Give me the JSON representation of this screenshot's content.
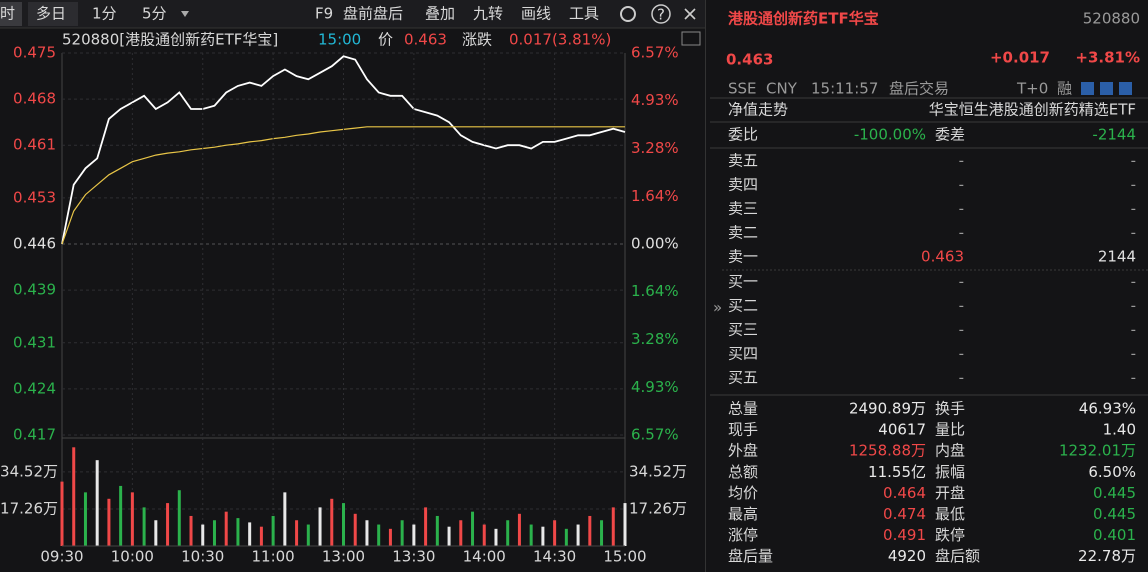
{
  "toolbar": {
    "tabs": [
      "时",
      "多日",
      "1分",
      "5分"
    ],
    "tools": [
      "F9",
      "盘前盘后",
      "叠加",
      "九转",
      "画线",
      "工具"
    ]
  },
  "quote_line": {
    "name": "520880[港股通创新药ETF华宝]",
    "time": "15:00",
    "price_label": "价",
    "price": "0.463",
    "change_label": "涨跌",
    "change": "0.017(3.81%)"
  },
  "chart_data": [
    {
      "type": "line",
      "x": [
        0,
        5,
        10,
        15,
        20,
        25,
        30,
        35,
        40,
        45,
        50,
        55,
        60,
        65,
        70,
        75,
        80,
        85,
        90,
        95,
        100,
        105,
        110,
        115,
        120,
        125,
        130,
        135,
        140,
        145,
        150,
        155,
        160,
        165,
        170,
        175,
        180,
        185,
        190,
        195,
        200,
        205,
        210,
        215,
        220,
        225,
        230,
        235,
        240
      ],
      "xlim": [
        0,
        240
      ],
      "series": [
        {
          "color": "#ffffff",
          "values": [
            0.446,
            0.455,
            0.4575,
            0.459,
            0.465,
            0.4665,
            0.4675,
            0.4685,
            0.4665,
            0.4675,
            0.469,
            0.4665,
            0.4665,
            0.467,
            0.469,
            0.47,
            0.4705,
            0.47,
            0.4715,
            0.4725,
            0.4715,
            0.471,
            0.472,
            0.473,
            0.4745,
            0.474,
            0.471,
            0.469,
            0.4685,
            0.4685,
            0.4665,
            0.466,
            0.4655,
            0.4645,
            0.4625,
            0.4615,
            0.461,
            0.4605,
            0.461,
            0.461,
            0.4605,
            0.4615,
            0.4615,
            0.462,
            0.4625,
            0.4625,
            0.463,
            0.4635,
            0.463
          ]
        },
        {
          "color": "#e8c547",
          "values": [
            0.446,
            0.451,
            0.4535,
            0.455,
            0.4565,
            0.4575,
            0.4585,
            0.459,
            0.4595,
            0.4598,
            0.46,
            0.4603,
            0.4605,
            0.4607,
            0.461,
            0.4612,
            0.4615,
            0.4617,
            0.462,
            0.4622,
            0.4625,
            0.4627,
            0.463,
            0.4632,
            0.4634,
            0.4636,
            0.4638,
            0.4638,
            0.4638,
            0.4638,
            0.4638,
            0.4638,
            0.4638,
            0.4638,
            0.4638,
            0.4638,
            0.4638,
            0.4638,
            0.4638,
            0.4638,
            0.4638,
            0.4638,
            0.4638,
            0.4638,
            0.4638,
            0.4638,
            0.4638,
            0.4638,
            0.4638
          ]
        }
      ],
      "ylim": [
        0.417,
        0.475
      ],
      "yticks": [
        0.475,
        0.468,
        0.461,
        0.453,
        0.446,
        0.439,
        0.431,
        0.424,
        0.417
      ],
      "y2lim": [
        -6.57,
        6.57
      ],
      "y2ticks": [
        {
          "value": 6.57,
          "label": "6.57%"
        },
        {
          "value": 4.93,
          "label": "4.93%"
        },
        {
          "value": 3.28,
          "label": "3.28%"
        },
        {
          "value": 1.64,
          "label": "1.64%"
        },
        {
          "value": 0,
          "label": "0.00%"
        },
        {
          "value": -1.64,
          "label": "1.64%"
        },
        {
          "value": -3.28,
          "label": "3.28%"
        },
        {
          "value": -4.93,
          "label": "4.93%"
        },
        {
          "value": -6.57,
          "label": "6.57%"
        }
      ],
      "grid": true
    },
    {
      "type": "bar",
      "x": [
        0,
        5,
        10,
        15,
        20,
        25,
        30,
        35,
        40,
        45,
        50,
        55,
        60,
        65,
        70,
        75,
        80,
        85,
        90,
        95,
        100,
        105,
        110,
        115,
        120,
        125,
        130,
        135,
        140,
        145,
        150,
        155,
        160,
        165,
        170,
        175,
        180,
        185,
        190,
        195,
        200,
        205,
        210,
        215,
        220,
        225,
        230,
        235,
        240
      ],
      "xlim": [
        0,
        240
      ],
      "xticks": [
        {
          "value": 0,
          "label": "09:30"
        },
        {
          "value": 30,
          "label": "10:00"
        },
        {
          "value": 60,
          "label": "10:30"
        },
        {
          "value": 90,
          "label": "11:00"
        },
        {
          "value": 120,
          "label": "13:00"
        },
        {
          "value": 150,
          "label": "13:30"
        },
        {
          "value": 180,
          "label": "14:00"
        },
        {
          "value": 210,
          "label": "14:30"
        },
        {
          "value": 240,
          "label": "15:00"
        }
      ],
      "values": [
        30,
        46,
        25,
        40,
        22,
        28,
        25,
        18,
        12,
        20,
        26,
        14,
        10,
        12,
        16,
        13,
        11,
        9,
        14,
        25,
        12,
        10,
        18,
        22,
        20,
        15,
        12,
        10,
        8,
        12,
        10,
        18,
        14,
        9,
        12,
        16,
        10,
        8,
        12,
        15,
        10,
        9,
        12,
        8,
        10,
        14,
        12,
        18,
        20
      ],
      "colors": [
        "#f04848",
        "#f04848",
        "#2bb24c",
        "#e8e8e8",
        "#f04848",
        "#2bb24c",
        "#f04848",
        "#2bb24c",
        "#e8e8e8",
        "#f04848",
        "#2bb24c",
        "#f04848",
        "#e8e8e8",
        "#2bb24c",
        "#f04848",
        "#2bb24c",
        "#e8e8e8",
        "#f04848",
        "#2bb24c",
        "#e8e8e8",
        "#f04848",
        "#2bb24c",
        "#e8e8e8",
        "#f04848",
        "#2bb24c",
        "#f04848",
        "#e8e8e8",
        "#2bb24c",
        "#f04848",
        "#2bb24c",
        "#e8e8e8",
        "#f04848",
        "#2bb24c",
        "#e8e8e8",
        "#f04848",
        "#2bb24c",
        "#f04848",
        "#e8e8e8",
        "#2bb24c",
        "#f04848",
        "#2bb24c",
        "#e8e8e8",
        "#f04848",
        "#2bb24c",
        "#e8e8e8",
        "#f04848",
        "#2bb24c",
        "#f04848",
        "#e8e8e8"
      ],
      "ylim": [
        0,
        49.4
      ],
      "yticks": [
        {
          "value": 34.52,
          "label": "34.52万"
        },
        {
          "value": 17.26,
          "label": "17.26万"
        }
      ]
    }
  ],
  "quote": {
    "name": "港股通创新药ETF华宝",
    "code": "520880",
    "price": "0.463",
    "change": "+0.017",
    "change_pct": "+3.81%",
    "market": "SSE",
    "currency": "CNY",
    "time": "15:11:57",
    "session": "盘后交易",
    "t0": "T+0",
    "margin": "融"
  },
  "nav_row": {
    "label": "净值走势",
    "fund": "华宝恒生港股通创新药精选ETF"
  },
  "ratio_row": {
    "label": "委比",
    "value": "-100.00%",
    "diff_label": "委差",
    "diff": "-2144"
  },
  "asks": [
    {
      "label": "卖五",
      "price": "-",
      "volume": "-"
    },
    {
      "label": "卖四",
      "price": "-",
      "volume": "-"
    },
    {
      "label": "卖三",
      "price": "-",
      "volume": "-"
    },
    {
      "label": "卖二",
      "price": "-",
      "volume": "-"
    },
    {
      "label": "卖一",
      "price": "0.463",
      "volume": "2144"
    }
  ],
  "bids": [
    {
      "label": "买一",
      "price": "-",
      "volume": "-"
    },
    {
      "label": "买二",
      "price": "-",
      "volume": "-"
    },
    {
      "label": "买三",
      "price": "-",
      "volume": "-"
    },
    {
      "label": "买四",
      "price": "-",
      "volume": "-"
    },
    {
      "label": "买五",
      "price": "-",
      "volume": "-"
    }
  ],
  "stats": [
    {
      "l1": "总量",
      "v1": "2490.89万",
      "c1": "#e8e8e8",
      "l2": "换手",
      "v2": "46.93%",
      "c2": "#e8e8e8"
    },
    {
      "l1": "现手",
      "v1": "40617",
      "c1": "#e8e8e8",
      "l2": "量比",
      "v2": "1.40",
      "c2": "#e8e8e8"
    },
    {
      "l1": "外盘",
      "v1": "1258.88万",
      "c1": "#f04848",
      "l2": "内盘",
      "v2": "1232.01万",
      "c2": "#2bb24c"
    },
    {
      "l1": "总额",
      "v1": "11.55亿",
      "c1": "#e8e8e8",
      "l2": "振幅",
      "v2": "6.50%",
      "c2": "#e8e8e8"
    },
    {
      "l1": "均价",
      "v1": "0.464",
      "c1": "#f04848",
      "l2": "开盘",
      "v2": "0.445",
      "c2": "#2bb24c"
    },
    {
      "l1": "最高",
      "v1": "0.474",
      "c1": "#f04848",
      "l2": "最低",
      "v2": "0.445",
      "c2": "#2bb24c"
    },
    {
      "l1": "涨停",
      "v1": "0.491",
      "c1": "#f04848",
      "l2": "跌停",
      "v2": "0.401",
      "c2": "#2bb24c"
    },
    {
      "l1": "盘后量",
      "v1": "4920",
      "c1": "#e8e8e8",
      "l2": "盘后额",
      "v2": "22.78万",
      "c2": "#e8e8e8"
    }
  ]
}
